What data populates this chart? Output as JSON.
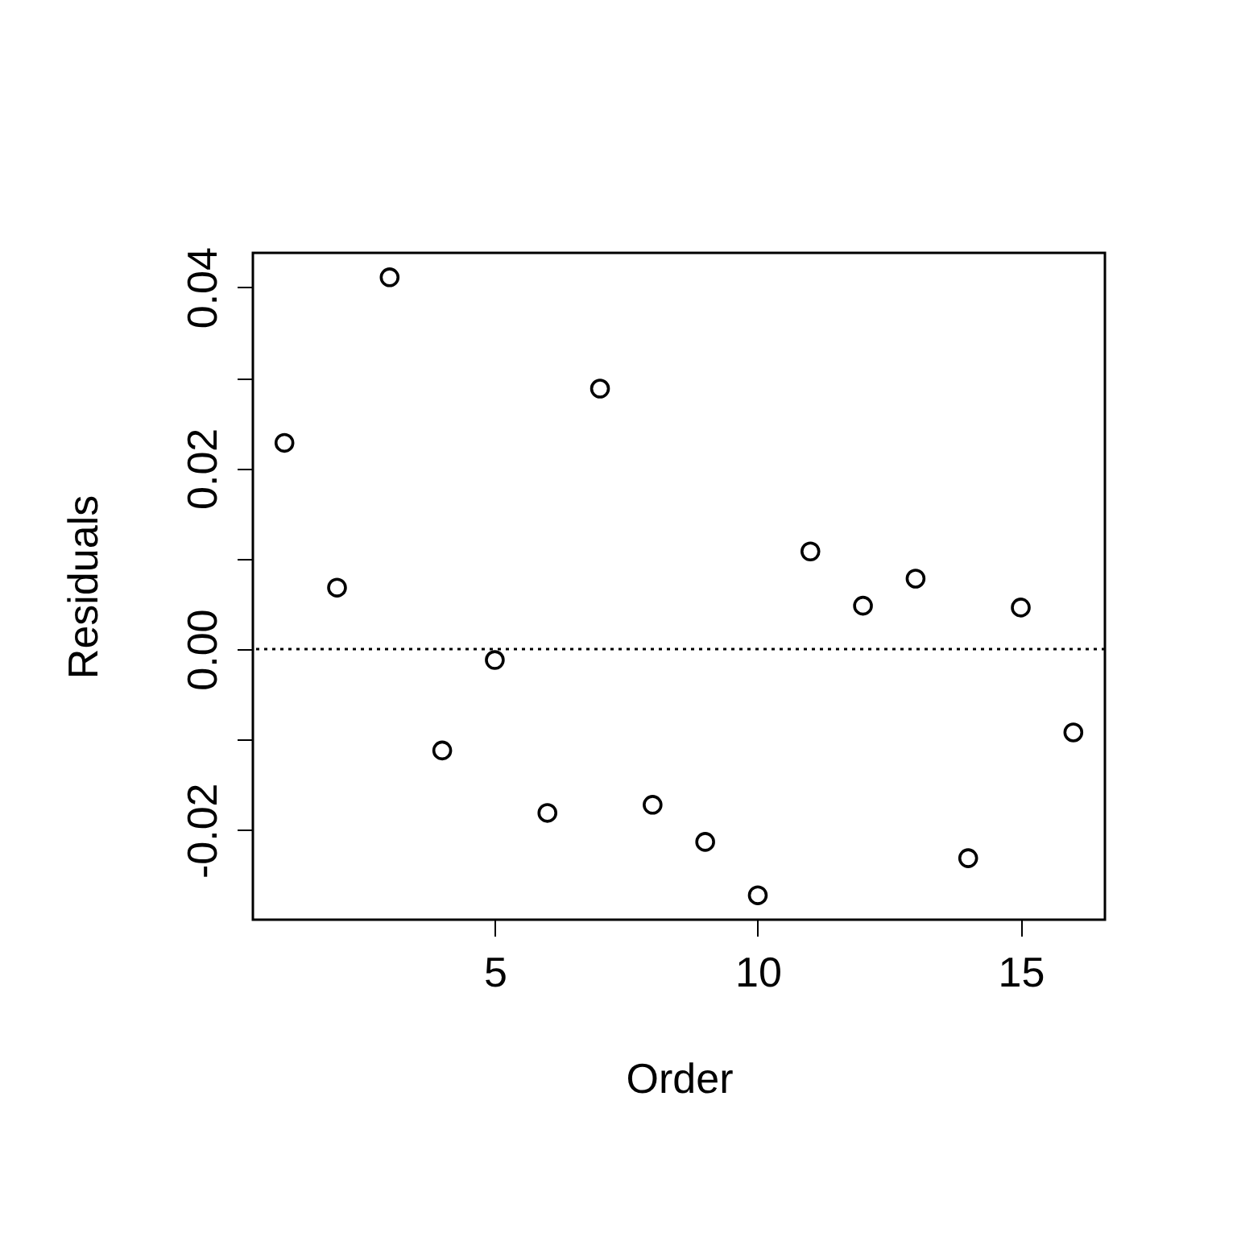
{
  "chart_data": {
    "type": "scatter",
    "xlabel": "Order",
    "ylabel": "Residuals",
    "x": [
      1,
      2,
      3,
      4,
      5,
      6,
      7,
      8,
      9,
      10,
      11,
      12,
      13,
      14,
      15,
      16
    ],
    "series": [
      {
        "color": "#000000",
        "values": [
          0.0228,
          0.0068,
          0.0411,
          -0.0112,
          -0.0012,
          -0.0181,
          0.0288,
          -0.0172,
          -0.0213,
          -0.0272,
          0.0108,
          0.0048,
          0.0078,
          -0.0231,
          0.0046,
          -0.0092
        ]
      }
    ],
    "xlim": [
      0.4,
      16.6
    ],
    "xticks": [
      5,
      10,
      15
    ],
    "ylim": [
      -0.0299,
      0.0438
    ],
    "yticks": [
      -0.02,
      {
        "value": -0.01,
        "label": null
      },
      {
        "value": 0,
        "label": "0.00"
      },
      {
        "value": 0.01,
        "label": null
      },
      0.02,
      {
        "value": 0.03,
        "label": null
      },
      0.04
    ],
    "ref_lines": [
      {
        "axis": "y",
        "value": 0,
        "line_style": "dotted",
        "color": "#000000"
      }
    ],
    "marker": "circle",
    "grid": false
  }
}
